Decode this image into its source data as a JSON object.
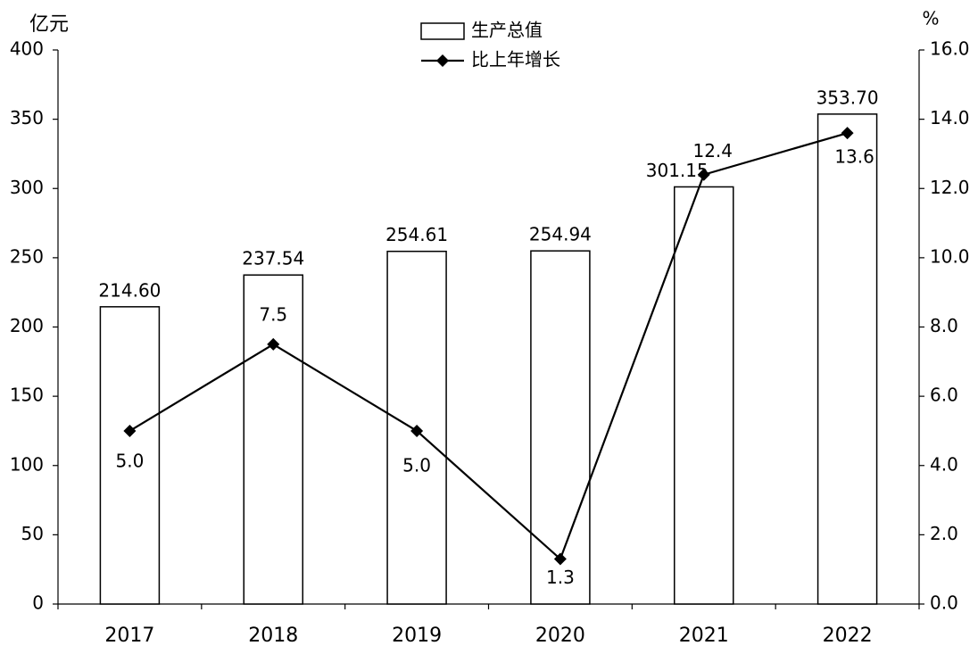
{
  "chart_data": {
    "type": "combo",
    "y_label": "亿元",
    "y2_label": "%",
    "categories": [
      "2017",
      "2018",
      "2019",
      "2020",
      "2021",
      "2022"
    ],
    "series": [
      {
        "name": "生产总值",
        "type": "bar",
        "color": "#ffffff",
        "stroke": "#000000",
        "values": [
          214.6,
          237.54,
          254.61,
          254.94,
          301.15,
          353.7
        ],
        "value_labels": [
          "214.60",
          "237.54",
          "254.61",
          "254.94",
          "301.15",
          "353.70"
        ]
      },
      {
        "name": "比上年增长",
        "type": "line",
        "axis": "y2",
        "color": "#000000",
        "values": [
          5,
          7.5,
          5,
          1.3,
          12.4,
          13.6
        ],
        "value_labels": [
          "5.0",
          "7.5",
          "5.0",
          "1.3",
          "12.4",
          "13.6"
        ]
      }
    ],
    "ylim": [
      0,
      400
    ],
    "yticks": [
      0,
      50,
      100,
      150,
      200,
      250,
      300,
      350,
      400
    ],
    "y2lim": [
      0,
      16
    ],
    "y2ticks": [
      {
        "value": 0,
        "label": "0.0"
      },
      {
        "value": 2,
        "label": "2.0"
      },
      {
        "value": 4,
        "label": "4.0"
      },
      {
        "value": 6,
        "label": "6.0"
      },
      {
        "value": 8,
        "label": "8.0"
      },
      {
        "value": 10,
        "label": "10.0"
      },
      {
        "value": 12,
        "label": "12.0"
      },
      {
        "value": 14,
        "label": "14.0"
      },
      {
        "value": 16,
        "label": "16.0"
      }
    ],
    "legend": "top"
  }
}
